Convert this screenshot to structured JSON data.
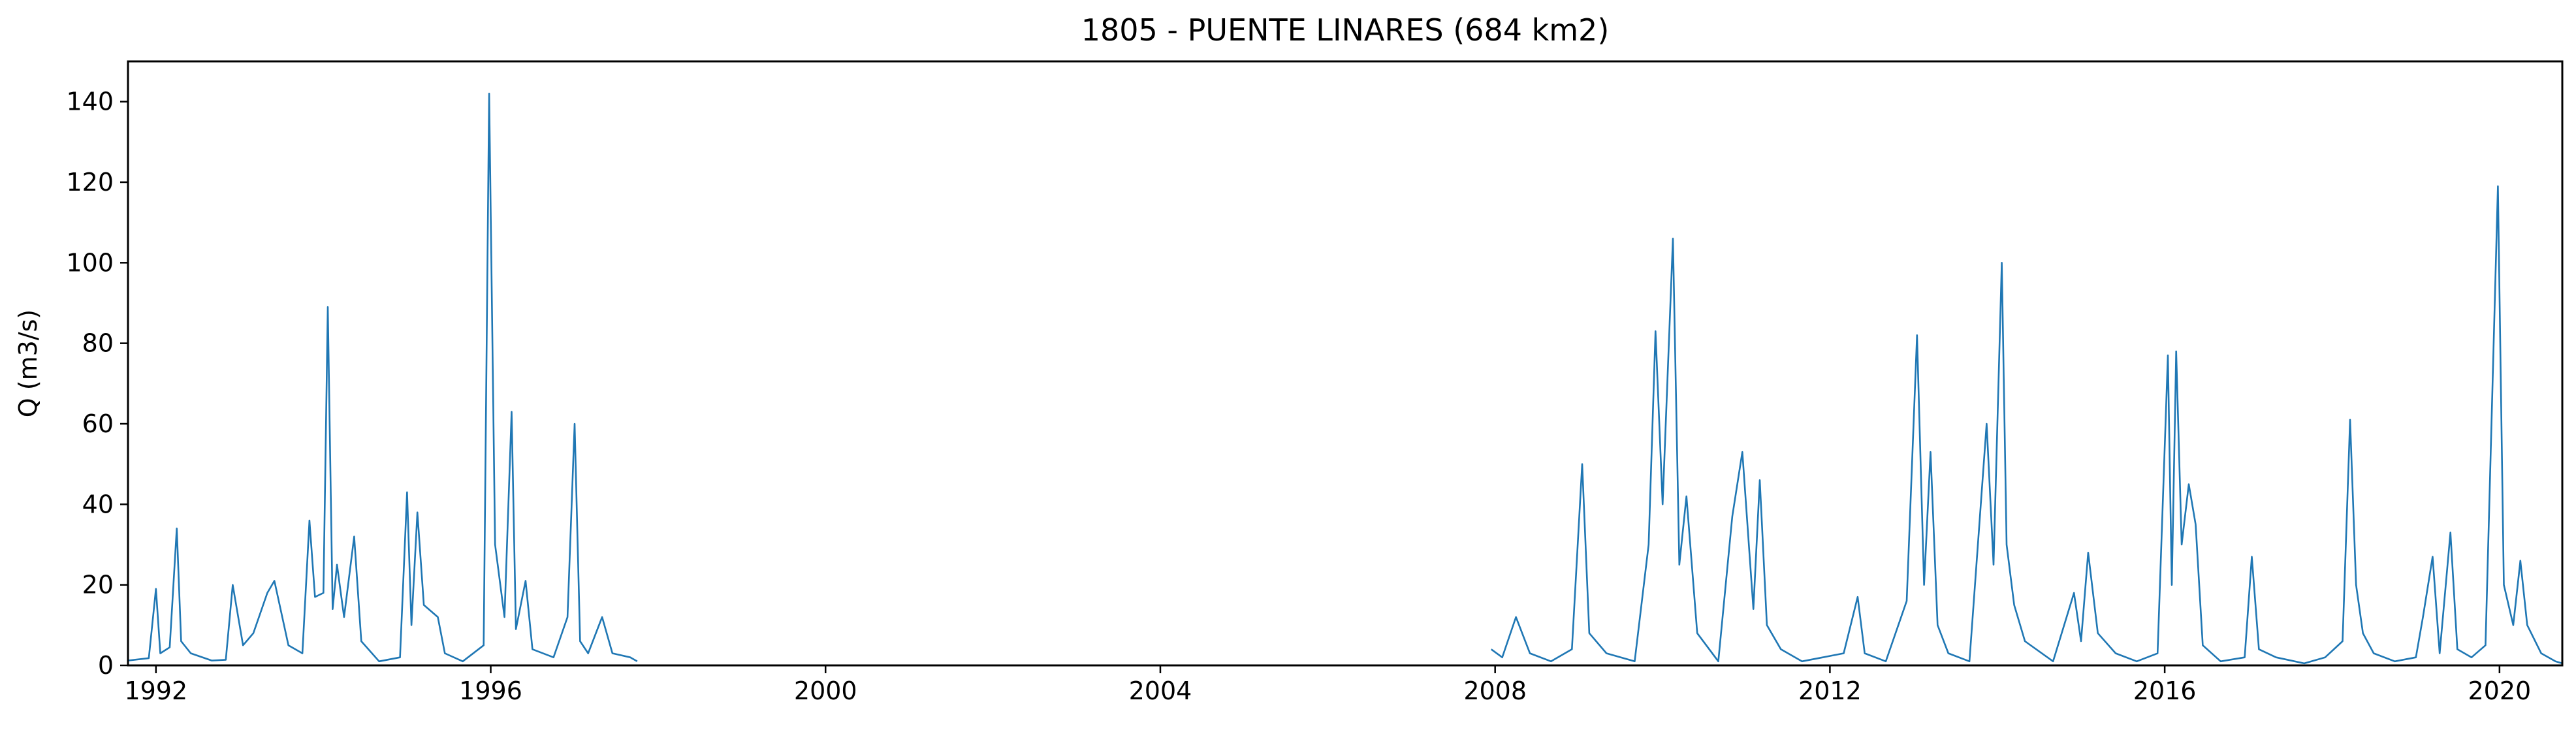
{
  "chart_data": {
    "type": "line",
    "title": "1805 - PUENTE LINARES (684 km2)",
    "xlabel": "",
    "ylabel": "Q (m3/s)",
    "x_axis": {
      "type": "date",
      "range": [
        "1991-09-01",
        "2020-10-01"
      ],
      "ticks": [
        "1992-01-01",
        "1996-01-01",
        "2000-01-01",
        "2004-01-01",
        "2008-01-01",
        "2012-01-01",
        "2016-01-01",
        "2020-01-01"
      ],
      "tick_labels": [
        "1992",
        "1996",
        "2000",
        "2004",
        "2008",
        "2012",
        "2016",
        "2020"
      ]
    },
    "y_axis": {
      "range": [
        0,
        150
      ],
      "ticks": [
        0,
        20,
        40,
        60,
        80,
        100,
        120,
        140
      ],
      "tick_labels": [
        "0",
        "20",
        "40",
        "60",
        "80",
        "100",
        "120",
        "140"
      ]
    },
    "grid": false,
    "legend": "none",
    "series": [
      {
        "color": "#1f77b4",
        "points": [
          [
            "1991-09-01",
            1.2
          ],
          [
            "1991-12-01",
            1.8
          ],
          [
            "1992-01-01",
            19.0
          ],
          [
            "1992-01-20",
            3.0
          ],
          [
            "1992-03-01",
            4.5
          ],
          [
            "1992-04-01",
            34.0
          ],
          [
            "1992-04-20",
            6.0
          ],
          [
            "1992-06-01",
            3.0
          ],
          [
            "1992-09-01",
            1.2
          ],
          [
            "1992-11-01",
            1.4
          ],
          [
            "1992-12-01",
            20.0
          ],
          [
            "1993-01-15",
            5.0
          ],
          [
            "1993-03-01",
            8.0
          ],
          [
            "1993-05-01",
            18.0
          ],
          [
            "1993-06-01",
            21.0
          ],
          [
            "1993-08-01",
            5.0
          ],
          [
            "1993-10-01",
            3.0
          ],
          [
            "1993-11-01",
            36.0
          ],
          [
            "1993-11-25",
            17.0
          ],
          [
            "1994-01-01",
            18.0
          ],
          [
            "1994-01-20",
            89.0
          ],
          [
            "1994-02-10",
            14.0
          ],
          [
            "1994-03-01",
            25.0
          ],
          [
            "1994-04-01",
            12.0
          ],
          [
            "1994-05-15",
            32.0
          ],
          [
            "1994-06-15",
            6.0
          ],
          [
            "1994-09-01",
            1.0
          ],
          [
            "1994-12-01",
            2.0
          ],
          [
            "1995-01-01",
            43.0
          ],
          [
            "1995-01-20",
            10.0
          ],
          [
            "1995-02-15",
            38.0
          ],
          [
            "1995-03-15",
            15.0
          ],
          [
            "1995-05-15",
            12.0
          ],
          [
            "1995-06-15",
            3.0
          ],
          [
            "1995-09-01",
            1.0
          ],
          [
            "1995-12-01",
            5.0
          ],
          [
            "1995-12-25",
            142.0
          ],
          [
            "1996-01-20",
            30.0
          ],
          [
            "1996-03-01",
            12.0
          ],
          [
            "1996-04-01",
            63.0
          ],
          [
            "1996-04-20",
            9.0
          ],
          [
            "1996-06-01",
            21.0
          ],
          [
            "1996-07-01",
            4.0
          ],
          [
            "1996-10-01",
            2.0
          ],
          [
            "1996-12-01",
            12.0
          ],
          [
            "1997-01-01",
            60.0
          ],
          [
            "1997-01-25",
            6.0
          ],
          [
            "1997-03-01",
            3.0
          ],
          [
            "1997-05-01",
            12.0
          ],
          [
            "1997-06-15",
            3.0
          ],
          [
            "1997-09-01",
            2.0
          ],
          [
            "1997-10-01",
            1.0
          ],
          [
            null,
            null
          ],
          [
            "2007-12-15",
            4.0
          ],
          [
            "2008-02-01",
            2.0
          ],
          [
            "2008-04-01",
            12.0
          ],
          [
            "2008-06-01",
            3.0
          ],
          [
            "2008-09-01",
            1.0
          ],
          [
            "2008-12-01",
            4.0
          ],
          [
            "2009-01-15",
            50.0
          ],
          [
            "2009-02-15",
            8.0
          ],
          [
            "2009-05-01",
            3.0
          ],
          [
            "2009-09-01",
            1.0
          ],
          [
            "2009-11-01",
            30.0
          ],
          [
            "2009-12-01",
            83.0
          ],
          [
            "2010-01-01",
            40.0
          ],
          [
            "2010-02-15",
            106.0
          ],
          [
            "2010-03-15",
            25.0
          ],
          [
            "2010-04-15",
            42.0
          ],
          [
            "2010-06-01",
            8.0
          ],
          [
            "2010-09-01",
            1.0
          ],
          [
            "2010-11-01",
            37.0
          ],
          [
            "2010-12-15",
            53.0
          ],
          [
            "2011-02-01",
            14.0
          ],
          [
            "2011-03-01",
            46.0
          ],
          [
            "2011-04-01",
            10.0
          ],
          [
            "2011-06-01",
            4.0
          ],
          [
            "2011-09-01",
            1.0
          ],
          [
            "2011-12-01",
            2.0
          ],
          [
            "2012-03-01",
            3.0
          ],
          [
            "2012-05-01",
            17.0
          ],
          [
            "2012-06-01",
            3.0
          ],
          [
            "2012-09-01",
            1.0
          ],
          [
            "2012-12-01",
            16.0
          ],
          [
            "2013-01-15",
            82.0
          ],
          [
            "2013-02-15",
            20.0
          ],
          [
            "2013-03-15",
            53.0
          ],
          [
            "2013-04-15",
            10.0
          ],
          [
            "2013-06-01",
            3.0
          ],
          [
            "2013-09-01",
            1.0
          ],
          [
            "2013-11-15",
            60.0
          ],
          [
            "2013-12-15",
            25.0
          ],
          [
            "2014-01-20",
            100.0
          ],
          [
            "2014-02-10",
            30.0
          ],
          [
            "2014-03-15",
            15.0
          ],
          [
            "2014-05-01",
            6.0
          ],
          [
            "2014-09-01",
            1.0
          ],
          [
            "2014-12-01",
            18.0
          ],
          [
            "2015-01-01",
            6.0
          ],
          [
            "2015-02-01",
            28.0
          ],
          [
            "2015-03-15",
            8.0
          ],
          [
            "2015-06-01",
            3.0
          ],
          [
            "2015-09-01",
            1.0
          ],
          [
            "2015-12-01",
            3.0
          ],
          [
            "2016-01-15",
            77.0
          ],
          [
            "2016-02-01",
            20.0
          ],
          [
            "2016-02-20",
            78.0
          ],
          [
            "2016-03-15",
            30.0
          ],
          [
            "2016-04-15",
            45.0
          ],
          [
            "2016-05-15",
            35.0
          ],
          [
            "2016-06-15",
            5.0
          ],
          [
            "2016-09-01",
            1.0
          ],
          [
            "2016-12-15",
            2.0
          ],
          [
            "2017-01-15",
            27.0
          ],
          [
            "2017-02-15",
            4.0
          ],
          [
            "2017-05-01",
            2.0
          ],
          [
            "2017-09-01",
            0.5
          ],
          [
            "2017-12-01",
            2.0
          ],
          [
            "2018-02-15",
            6.0
          ],
          [
            "2018-03-20",
            61.0
          ],
          [
            "2018-04-15",
            20.0
          ],
          [
            "2018-05-15",
            8.0
          ],
          [
            "2018-07-01",
            3.0
          ],
          [
            "2018-10-01",
            1.0
          ],
          [
            "2019-01-01",
            2.0
          ],
          [
            "2019-02-01",
            12.0
          ],
          [
            "2019-03-15",
            27.0
          ],
          [
            "2019-04-15",
            3.0
          ],
          [
            "2019-06-01",
            33.0
          ],
          [
            "2019-07-01",
            4.0
          ],
          [
            "2019-09-01",
            2.0
          ],
          [
            "2019-11-01",
            5.0
          ],
          [
            "2019-12-25",
            119.0
          ],
          [
            "2020-01-20",
            20.0
          ],
          [
            "2020-03-01",
            10.0
          ],
          [
            "2020-04-01",
            26.0
          ],
          [
            "2020-05-01",
            10.0
          ],
          [
            "2020-07-01",
            3.0
          ],
          [
            "2020-09-01",
            1.0
          ],
          [
            "2020-10-01",
            0.5
          ]
        ]
      }
    ]
  }
}
